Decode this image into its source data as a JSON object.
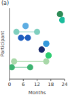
{
  "chart_data": {
    "type": "scatter",
    "title": "(a)",
    "x_label": "Months",
    "y_label": "Participant",
    "xlim": [
      0,
      24
    ],
    "xticks": [
      0,
      6,
      12,
      18,
      24
    ],
    "ylim": [
      0,
      12
    ],
    "yticks": [],
    "tick_labels": "x",
    "grid": false,
    "participants": [
      {
        "y": 11,
        "x": [
          22,
          22
        ],
        "color": "#2e8b57"
      },
      {
        "y": 10,
        "x": [
          23,
          23
        ],
        "color": "#1abc9c"
      },
      {
        "y": 9,
        "x": [
          7,
          7
        ],
        "color": "#5dade2"
      },
      {
        "y": 8,
        "x": [
          3,
          12
        ],
        "color": "#7fcfbf"
      },
      {
        "y": 7,
        "x": [
          5,
          8
        ],
        "color": "#1f5fbf"
      },
      {
        "y": 6,
        "x": [
          16,
          16
        ],
        "color": "#3498db"
      },
      {
        "y": 5,
        "x": [
          14,
          14
        ],
        "color": "#1a2a6c"
      },
      {
        "y": 4,
        "x": [
          17,
          17
        ],
        "color": "#2ecc71"
      },
      {
        "y": 3,
        "x": [
          2,
          16
        ],
        "color": "#a8d8a8"
      },
      {
        "y": 2,
        "x": [
          1,
          9
        ],
        "color": "#3cb371"
      }
    ]
  }
}
